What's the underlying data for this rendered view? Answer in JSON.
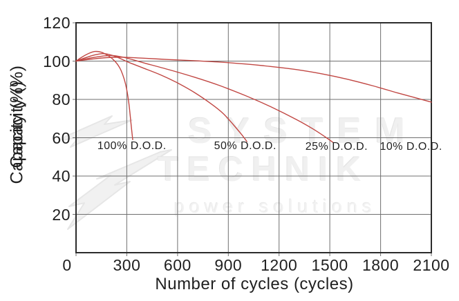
{
  "axes": {
    "y_label": "Capacity (%)",
    "x_label": "Number of cycles (cycles)",
    "x_ticks": [
      0,
      300,
      600,
      900,
      1200,
      1500,
      1800,
      2100
    ],
    "y_ticks": [
      120,
      100,
      80,
      60,
      40,
      20
    ]
  },
  "watermark": {
    "line1": "SYSTEM",
    "line2": "TECHNIK",
    "line3": "power solutions",
    "logo_icon": "lightning-arrows-icon"
  },
  "colors": {
    "curve": "#c14743",
    "grid": "#6f6f6f",
    "frame": "#2b2b2b",
    "text": "#1f1f1f",
    "watermark": "#f0f0f0"
  },
  "chart_data": {
    "type": "line",
    "title": "",
    "xlabel": "Number of cycles (cycles)",
    "ylabel": "Capacity (%)",
    "xlim": [
      0,
      2100
    ],
    "ylim": [
      0,
      120
    ],
    "grid": true,
    "x_grid_step": 300,
    "y_grid_step": 20,
    "legend_position": "inline-labels-below-60pct-line",
    "series": [
      {
        "name": "100% D.O.D.",
        "label": "100% D.O.D.",
        "label_pos": {
          "x": 330,
          "y": 55.5
        },
        "points": [
          [
            0,
            100
          ],
          [
            30,
            101.8
          ],
          [
            70,
            103.8
          ],
          [
            110,
            105
          ],
          [
            150,
            104.6
          ],
          [
            190,
            102.8
          ],
          [
            220,
            100.8
          ],
          [
            245,
            98.3
          ],
          [
            265,
            95.3
          ],
          [
            285,
            90.5
          ],
          [
            300,
            85
          ],
          [
            312,
            78
          ],
          [
            322,
            70
          ],
          [
            330,
            63
          ],
          [
            335,
            59
          ]
        ]
      },
      {
        "name": "50% D.O.D.",
        "label": "50% D.O.D.",
        "label_pos": {
          "x": 1000,
          "y": 55.5
        },
        "points": [
          [
            0,
            100
          ],
          [
            50,
            101.6
          ],
          [
            110,
            103.2
          ],
          [
            160,
            103.9
          ],
          [
            210,
            103.1
          ],
          [
            260,
            101.4
          ],
          [
            310,
            99.4
          ],
          [
            400,
            96.3
          ],
          [
            500,
            92.8
          ],
          [
            600,
            88.6
          ],
          [
            700,
            83.6
          ],
          [
            800,
            77.6
          ],
          [
            870,
            72.6
          ],
          [
            930,
            66.8
          ],
          [
            980,
            61.5
          ],
          [
            1010,
            58
          ]
        ]
      },
      {
        "name": "25% D.O.D.",
        "label": "25% D.O.D.",
        "label_pos": {
          "x": 1540,
          "y": 55.2
        },
        "points": [
          [
            0,
            100
          ],
          [
            60,
            101.2
          ],
          [
            140,
            102.4
          ],
          [
            210,
            102.9
          ],
          [
            280,
            102
          ],
          [
            340,
            100.6
          ],
          [
            420,
            98.6
          ],
          [
            550,
            95.5
          ],
          [
            700,
            91.6
          ],
          [
            850,
            87.2
          ],
          [
            1000,
            82
          ],
          [
            1150,
            76.2
          ],
          [
            1300,
            69.6
          ],
          [
            1400,
            64.6
          ],
          [
            1480,
            60
          ],
          [
            1520,
            57.5
          ]
        ]
      },
      {
        "name": "10% D.O.D.",
        "label": "10% D.O.D.",
        "label_pos": {
          "x": 1980,
          "y": 55.2
        },
        "points": [
          [
            0,
            100
          ],
          [
            80,
            100.9
          ],
          [
            180,
            101.8
          ],
          [
            280,
            102
          ],
          [
            400,
            101.5
          ],
          [
            550,
            100.8
          ],
          [
            700,
            100.2
          ],
          [
            850,
            99.5
          ],
          [
            1000,
            98.5
          ],
          [
            1150,
            97.2
          ],
          [
            1300,
            95.6
          ],
          [
            1450,
            93.4
          ],
          [
            1600,
            90.6
          ],
          [
            1750,
            87.2
          ],
          [
            1900,
            83.4
          ],
          [
            2000,
            81
          ],
          [
            2100,
            78.6
          ]
        ]
      }
    ]
  }
}
